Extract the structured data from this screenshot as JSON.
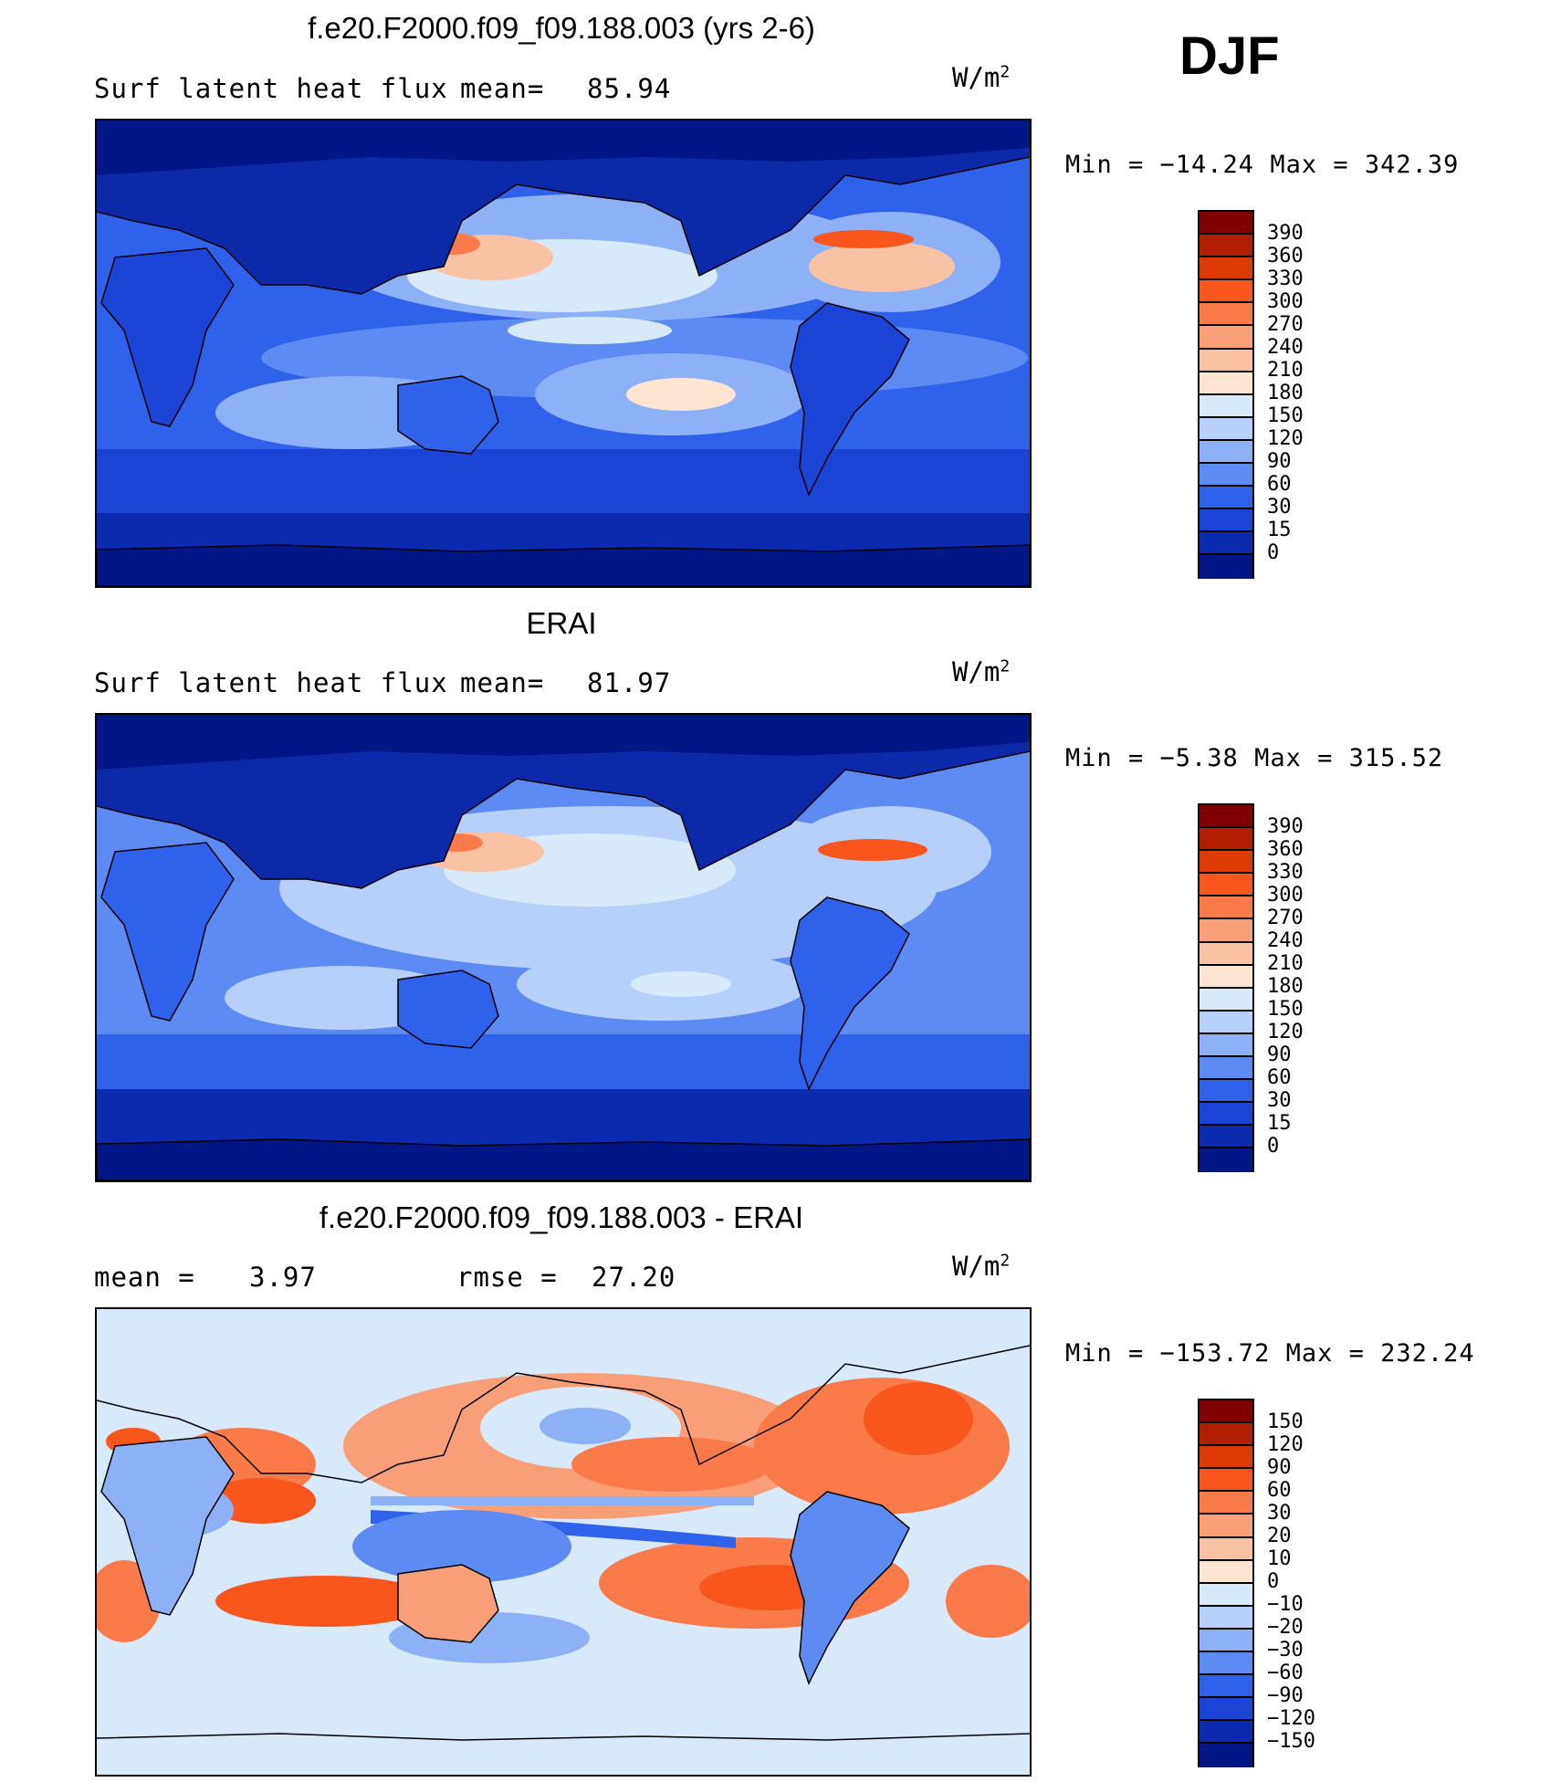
{
  "season": "DJF",
  "panels": [
    {
      "title": "f.e20.F2000.f09_f09.188.003 (yrs 2-6)",
      "left_text": "Surf  latent  heat  flux",
      "stat_label": "mean=",
      "stat_value": "85.94",
      "units": "W/m",
      "units_exp": "2",
      "minmax": "Min  =  −14.24  Max  =  342.39",
      "colorbar_labels": [
        "390",
        "360",
        "330",
        "300",
        "270",
        "240",
        "210",
        "180",
        "150",
        "120",
        "90",
        "60",
        "30",
        "15",
        "0"
      ],
      "colorbar_colors": [
        "#800000",
        "#b21e00",
        "#dd3b05",
        "#f9561e",
        "#fa7a4a",
        "#f89f78",
        "#f9c3a3",
        "#fde5d2",
        "#d8e9fa",
        "#b7d0fb",
        "#8cb1f7",
        "#5c8cf1",
        "#2f62ea",
        "#1a44d5",
        "#0a2ab0",
        "#001785"
      ]
    },
    {
      "title": "ERAI",
      "left_text": "Surf  latent  heat  flux",
      "stat_label": "mean=",
      "stat_value": "81.97",
      "units": "W/m",
      "units_exp": "2",
      "minmax": "Min  =   −5.38  Max  =  315.52",
      "colorbar_labels": [
        "390",
        "360",
        "330",
        "300",
        "270",
        "240",
        "210",
        "180",
        "150",
        "120",
        "90",
        "60",
        "30",
        "15",
        "0"
      ],
      "colorbar_colors": [
        "#800000",
        "#b21e00",
        "#dd3b05",
        "#f9561e",
        "#fa7a4a",
        "#f89f78",
        "#f9c3a3",
        "#fde5d2",
        "#d8e9fa",
        "#b7d0fb",
        "#8cb1f7",
        "#5c8cf1",
        "#2f62ea",
        "#1a44d5",
        "#0a2ab0",
        "#001785"
      ]
    },
    {
      "title": "f.e20.F2000.f09_f09.188.003 - ERAI",
      "left_text": "mean  =",
      "left_value": "3.97",
      "stat_label": "rmse  =",
      "stat_value": "27.20",
      "units": "W/m",
      "units_exp": "2",
      "minmax": "Min  =  −153.72  Max  =  232.24",
      "colorbar_labels": [
        "150",
        "120",
        "90",
        "60",
        "30",
        "20",
        "10",
        "0",
        "−10",
        "−20",
        "−30",
        "−60",
        "−90",
        "−120",
        "−150"
      ],
      "colorbar_colors": [
        "#800000",
        "#b21e00",
        "#dd3b05",
        "#f9561e",
        "#fa7a4a",
        "#f89f78",
        "#f9c3a3",
        "#fde5d2",
        "#d8e9fa",
        "#b7d0fb",
        "#8cb1f7",
        "#5c8cf1",
        "#2f62ea",
        "#1a44d5",
        "#0a2ab0",
        "#001785"
      ]
    }
  ],
  "colors": {
    "land_low": "#0b2aa8",
    "ocean_mid": "#3a6cf0",
    "diff_background": "#d8e9fa"
  }
}
